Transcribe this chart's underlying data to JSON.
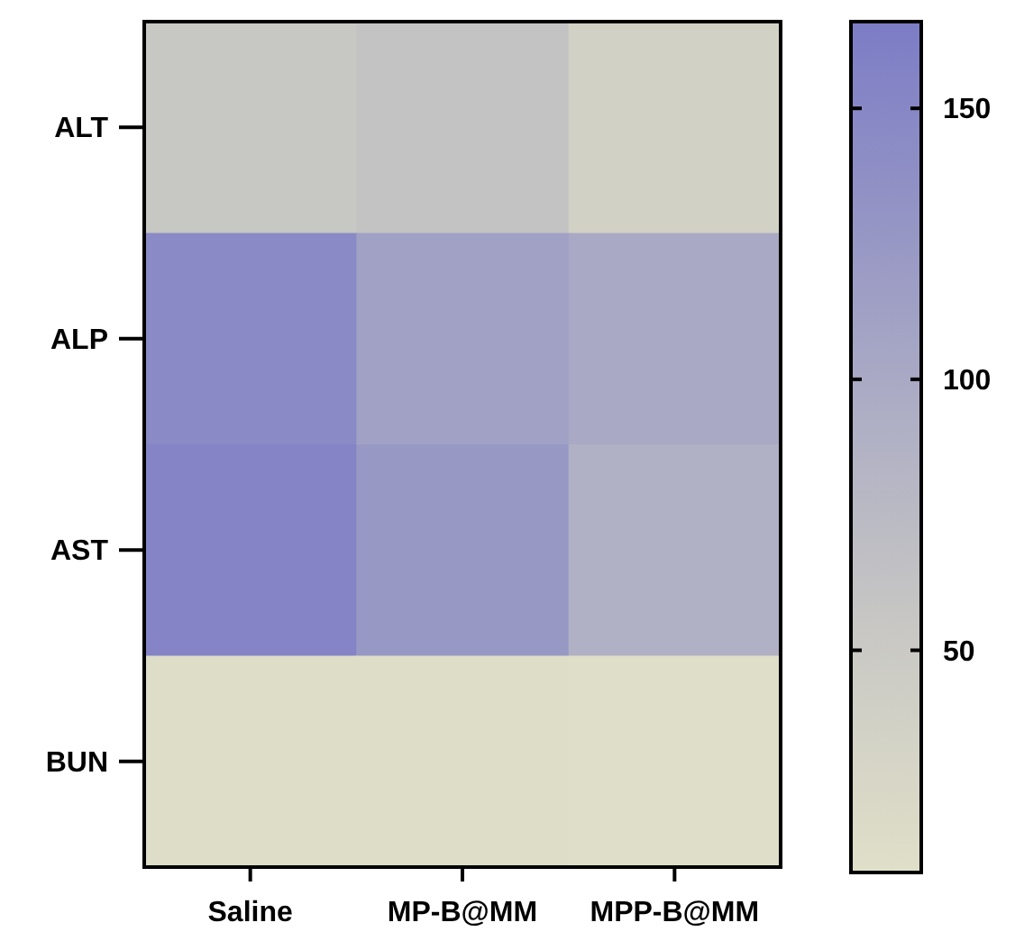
{
  "chart_data": {
    "type": "heatmap",
    "categories": [
      "Saline",
      "MP-B@MM",
      "MPP-B@MM"
    ],
    "y_categories": [
      "ALT",
      "ALP",
      "AST",
      "BUN"
    ],
    "cells": [
      [
        55,
        62,
        35
      ],
      [
        145,
        112,
        100
      ],
      [
        155,
        125,
        88
      ],
      [
        12,
        12,
        11
      ]
    ],
    "clim": [
      9,
      166
    ],
    "cticks": [
      50,
      100,
      150
    ]
  }
}
